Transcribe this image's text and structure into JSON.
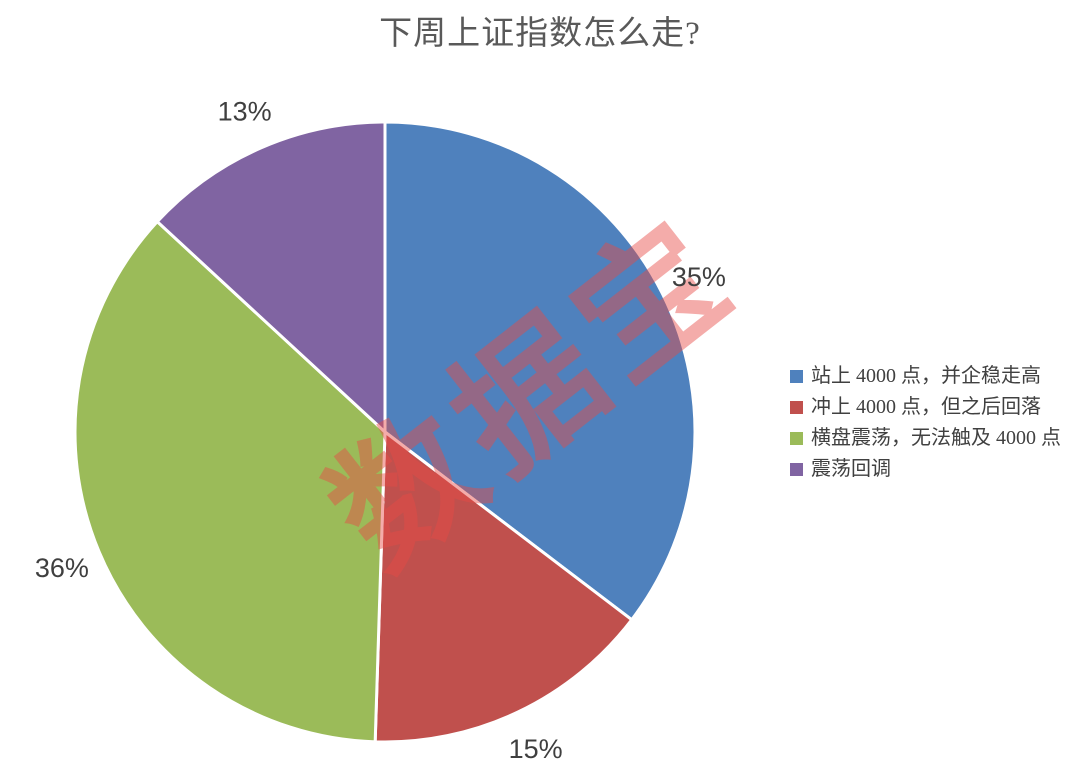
{
  "title": "下周上证指数怎么走?",
  "watermark": {
    "text": "数据宝",
    "color": "#E74B46",
    "opacity": 0.46
  },
  "chart_data": {
    "type": "pie",
    "title": "下周上证指数怎么走?",
    "labels": [
      "站上 4000 点，并企稳走高",
      "冲上 4000 点，但之后回落",
      "横盘震荡，无法触及 4000 点",
      "震荡回调"
    ],
    "values": [
      35,
      15,
      36,
      13
    ],
    "slice_labels": [
      "35%",
      "15%",
      "36%",
      "13%"
    ],
    "colors": [
      "#4F81BD",
      "#C0504D",
      "#9BBB59",
      "#8064A2"
    ],
    "start_angle_deg": 0,
    "direction": "clockwise",
    "label_position": "outside",
    "legend_position": "right",
    "divider_color": "#FFFFFF"
  },
  "style": {
    "title_color": "#595959",
    "slice_label_color": "#3F3F3F",
    "legend_text_color": "#404040",
    "background": "#FFFFFF"
  }
}
